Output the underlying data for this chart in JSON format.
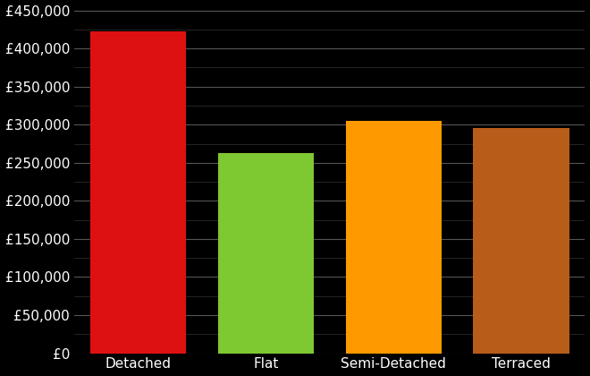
{
  "categories": [
    "Detached",
    "Flat",
    "Semi-Detached",
    "Terraced"
  ],
  "values": [
    422000,
    263000,
    305000,
    296000
  ],
  "bar_colors": [
    "#dd1111",
    "#7ec832",
    "#ff9900",
    "#b85c1a"
  ],
  "background_color": "#000000",
  "text_color": "#ffffff",
  "grid_color": "#555555",
  "minor_grid_color": "#333333",
  "ylim": [
    0,
    450000
  ],
  "yticks": [
    0,
    50000,
    100000,
    150000,
    200000,
    250000,
    300000,
    350000,
    400000,
    450000
  ],
  "bar_width": 0.75,
  "tick_fontsize": 11,
  "label_fontsize": 11
}
